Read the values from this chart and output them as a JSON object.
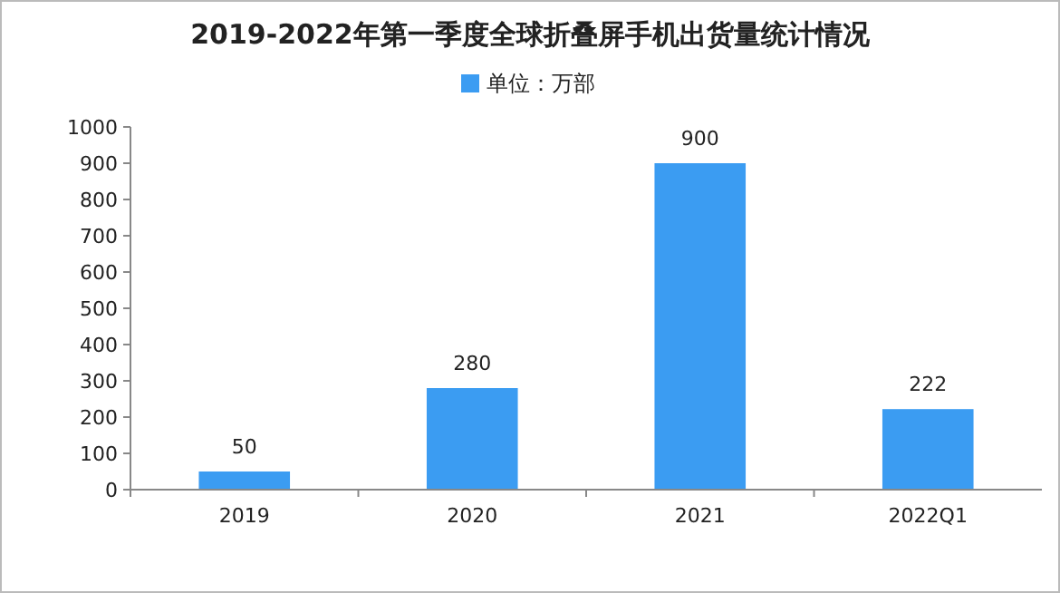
{
  "chart_data": {
    "type": "bar",
    "title": "2019-2022年第一季度全球折叠屏手机出货量统计情况",
    "categories": [
      "2019",
      "2020",
      "2021",
      "2022Q1"
    ],
    "series": [
      {
        "name": "单位：万部",
        "color": "#3b9cf2",
        "values": [
          50,
          280,
          900,
          222
        ]
      }
    ],
    "ylim": [
      0,
      1000
    ],
    "yticks": [
      0,
      100,
      200,
      300,
      400,
      500,
      600,
      700,
      800,
      900,
      1000
    ],
    "legend": "top",
    "data_labels": true
  }
}
